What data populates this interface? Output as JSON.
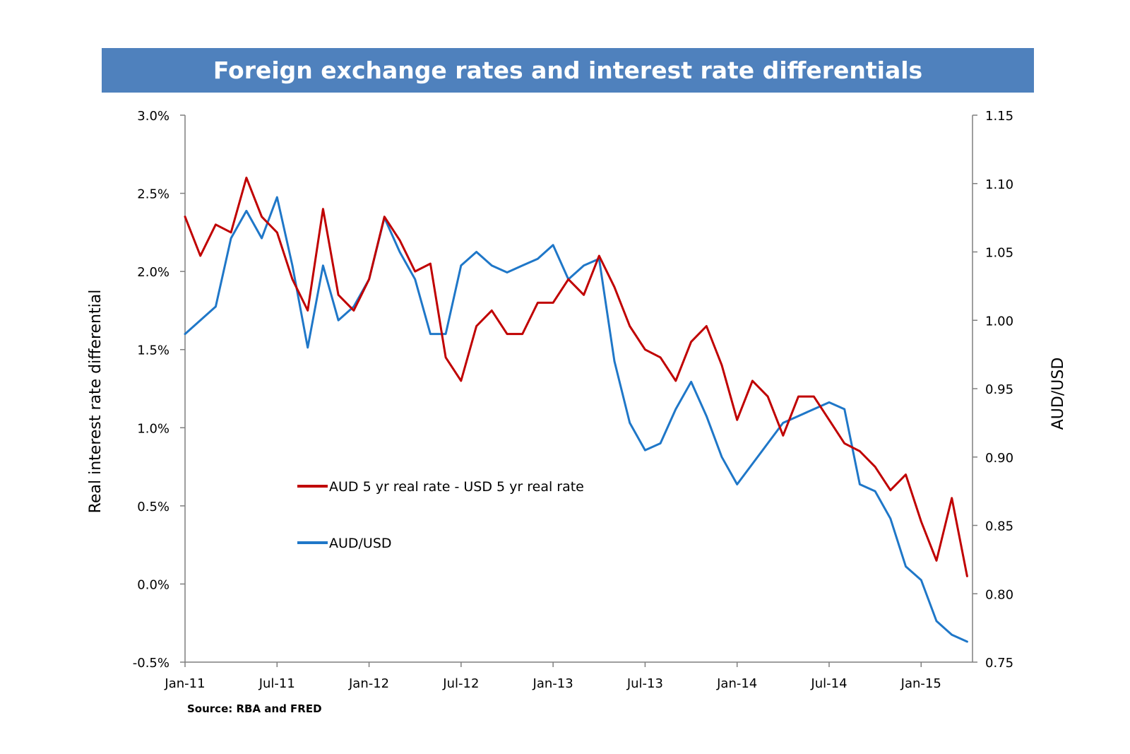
{
  "chart_data": {
    "type": "line",
    "title": "Foreign exchange rates and interest rate differentials",
    "source": "Source: RBA and FRED",
    "left_axis": {
      "label": "Real interest rate differential",
      "range": [
        -0.5,
        3.0
      ],
      "ticks": [
        -0.5,
        0.0,
        0.5,
        1.0,
        1.5,
        2.0,
        2.5,
        3.0
      ],
      "tick_labels": [
        "-0.5%",
        "0.0%",
        "0.5%",
        "1.0%",
        "1.5%",
        "2.0%",
        "2.5%",
        "3.0%"
      ]
    },
    "right_axis": {
      "label": "AUD/USD",
      "range": [
        0.75,
        1.15
      ],
      "ticks": [
        0.75,
        0.8,
        0.85,
        0.9,
        0.95,
        1.0,
        1.05,
        1.1,
        1.15
      ],
      "tick_labels": [
        "0.75",
        "0.80",
        "0.85",
        "0.90",
        "0.95",
        "1.00",
        "1.05",
        "1.10",
        "1.15"
      ]
    },
    "x_axis": {
      "range": [
        "2011-01",
        "2015-04"
      ],
      "ticks": [
        "2011-01",
        "2011-07",
        "2012-01",
        "2012-07",
        "2013-01",
        "2013-07",
        "2014-01",
        "2014-07",
        "2015-01"
      ],
      "tick_labels": [
        "Jan-11",
        "Jul-11",
        "Jan-12",
        "Jul-12",
        "Jan-13",
        "Jul-13",
        "Jan-14",
        "Jul-14",
        "Jan-15"
      ]
    },
    "grid": false,
    "legend_position": "center-left",
    "series": [
      {
        "name": "AUD 5 yr real rate - USD 5 yr real rate",
        "axis": "left",
        "color": "#c00000",
        "x": [
          "2011-01",
          "2011-02",
          "2011-03",
          "2011-04",
          "2011-05",
          "2011-06",
          "2011-07",
          "2011-08",
          "2011-09",
          "2011-10",
          "2011-11",
          "2011-12",
          "2012-01",
          "2012-02",
          "2012-03",
          "2012-04",
          "2012-05",
          "2012-06",
          "2012-07",
          "2012-08",
          "2012-09",
          "2012-10",
          "2012-11",
          "2012-12",
          "2013-01",
          "2013-02",
          "2013-03",
          "2013-04",
          "2013-05",
          "2013-06",
          "2013-07",
          "2013-08",
          "2013-09",
          "2013-10",
          "2013-11",
          "2013-12",
          "2014-01",
          "2014-02",
          "2014-03",
          "2014-04",
          "2014-05",
          "2014-06",
          "2014-07",
          "2014-08",
          "2014-09",
          "2014-10",
          "2014-11",
          "2014-12",
          "2015-01",
          "2015-02",
          "2015-03",
          "2015-04"
        ],
        "y": [
          2.35,
          2.1,
          2.3,
          2.25,
          2.6,
          2.35,
          2.25,
          1.95,
          1.75,
          2.4,
          1.85,
          1.75,
          1.95,
          2.35,
          2.2,
          2.0,
          2.05,
          1.45,
          1.3,
          1.65,
          1.75,
          1.6,
          1.6,
          1.8,
          1.8,
          1.95,
          1.85,
          2.1,
          1.9,
          1.65,
          1.5,
          1.45,
          1.3,
          1.55,
          1.65,
          1.4,
          1.05,
          1.3,
          1.2,
          0.95,
          1.2,
          1.2,
          1.05,
          0.9,
          0.85,
          0.75,
          0.6,
          0.7,
          0.4,
          0.15,
          0.55,
          0.05
        ]
      },
      {
        "name": "AUD/USD",
        "axis": "right",
        "color": "#1f77c8",
        "x": [
          "2011-01",
          "2011-02",
          "2011-03",
          "2011-04",
          "2011-05",
          "2011-06",
          "2011-07",
          "2011-08",
          "2011-09",
          "2011-10",
          "2011-11",
          "2011-12",
          "2012-01",
          "2012-02",
          "2012-03",
          "2012-04",
          "2012-05",
          "2012-06",
          "2012-07",
          "2012-08",
          "2012-09",
          "2012-10",
          "2012-11",
          "2012-12",
          "2013-01",
          "2013-02",
          "2013-03",
          "2013-04",
          "2013-05",
          "2013-06",
          "2013-07",
          "2013-08",
          "2013-09",
          "2013-10",
          "2013-11",
          "2013-12",
          "2014-01",
          "2014-02",
          "2014-03",
          "2014-04",
          "2014-05",
          "2014-06",
          "2014-07",
          "2014-08",
          "2014-09",
          "2014-10",
          "2014-11",
          "2014-12",
          "2015-01",
          "2015-02",
          "2015-03",
          "2015-04"
        ],
        "y": [
          0.99,
          1.0,
          1.01,
          1.06,
          1.08,
          1.06,
          1.09,
          1.04,
          0.98,
          1.04,
          1.0,
          1.01,
          1.03,
          1.075,
          1.05,
          1.03,
          0.99,
          0.99,
          1.04,
          1.05,
          1.04,
          1.035,
          1.04,
          1.045,
          1.055,
          1.03,
          1.04,
          1.045,
          0.97,
          0.925,
          0.905,
          0.91,
          0.935,
          0.955,
          0.93,
          0.9,
          0.88,
          0.895,
          0.91,
          0.925,
          0.93,
          0.935,
          0.94,
          0.935,
          0.88,
          0.875,
          0.855,
          0.82,
          0.81,
          0.78,
          0.77,
          0.765
        ]
      }
    ]
  }
}
